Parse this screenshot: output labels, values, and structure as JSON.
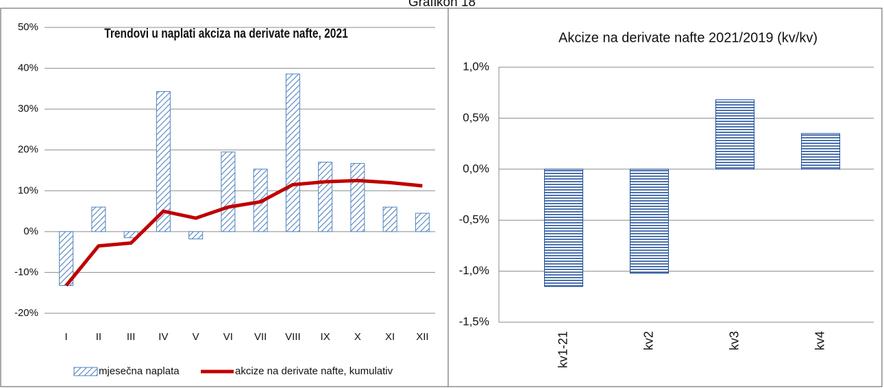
{
  "page_title": "Grafikon 18",
  "chart_data": [
    {
      "type": "bar",
      "title": "Trendovi u naplati akciza na derivate nafte, 2021",
      "categories": [
        "I",
        "II",
        "III",
        "IV",
        "V",
        "VI",
        "VII",
        "VIII",
        "IX",
        "X",
        "XI",
        "XII"
      ],
      "series": [
        {
          "name": "mjesečna naplata",
          "type": "bar",
          "color": "#4f81bd",
          "values": [
            -13.2,
            6,
            -1.5,
            34.3,
            -1.8,
            19.5,
            15.3,
            38.6,
            17,
            16.7,
            6,
            4.5
          ]
        },
        {
          "name": "akcize na derivate nafte, kumulativ",
          "type": "line",
          "color": "#c00000",
          "values": [
            -13.2,
            -3.5,
            -2.8,
            5,
            3.3,
            6,
            7.3,
            11.5,
            12.2,
            12.5,
            12,
            11.2
          ]
        }
      ],
      "ylim": [
        -20,
        50
      ],
      "yticks": [
        {
          "value": -20,
          "label": "-20%"
        },
        {
          "value": -10,
          "label": "-10%"
        },
        {
          "value": 0,
          "label": "0%"
        },
        {
          "value": 10,
          "label": "10%"
        },
        {
          "value": 20,
          "label": "20%"
        },
        {
          "value": 30,
          "label": "30%"
        },
        {
          "value": 40,
          "label": "40%"
        },
        {
          "value": 50,
          "label": "50%"
        }
      ],
      "grid": true,
      "legend": "bottom"
    },
    {
      "type": "bar",
      "title": "Akcize na derivate nafte 2021/2019 (kv/kv)",
      "categories": [
        "kv1-21",
        "kv2",
        "kv3",
        "kv4"
      ],
      "values": [
        -1.15,
        -1.02,
        0.68,
        0.35
      ],
      "color": "#1f4e99",
      "ylim": [
        -1.5,
        1.0
      ],
      "yticks": [
        {
          "value": -1.5,
          "label": "-1,5%"
        },
        {
          "value": -1.0,
          "label": "-1,0%"
        },
        {
          "value": -0.5,
          "label": "-0,5%"
        },
        {
          "value": 0,
          "label": "0,0%"
        },
        {
          "value": 0.5,
          "label": "0,5%"
        },
        {
          "value": 1.0,
          "label": "1,0%"
        }
      ],
      "grid": true
    }
  ]
}
